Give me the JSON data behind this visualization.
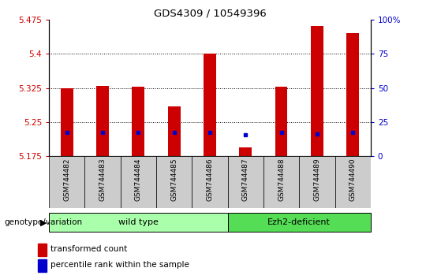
{
  "title": "GDS4309 / 10549396",
  "samples": [
    "GSM744482",
    "GSM744483",
    "GSM744484",
    "GSM744485",
    "GSM744486",
    "GSM744487",
    "GSM744488",
    "GSM744489",
    "GSM744490"
  ],
  "transformed_counts": [
    5.325,
    5.33,
    5.328,
    5.285,
    5.4,
    5.195,
    5.328,
    5.46,
    5.445
  ],
  "percentile_values": [
    5.228,
    5.227,
    5.227,
    5.227,
    5.227,
    5.222,
    5.227,
    5.224,
    5.227
  ],
  "ymin": 5.175,
  "ymax": 5.475,
  "yticks": [
    5.175,
    5.25,
    5.325,
    5.4,
    5.475
  ],
  "right_yticks": [
    0,
    25,
    50,
    75,
    100
  ],
  "bar_bottom": 5.175,
  "bar_color": "#cc0000",
  "blue_color": "#0000cc",
  "group1_label": "wild type",
  "group2_label": "Ezh2-deficient",
  "group1_count": 5,
  "group2_count": 4,
  "genotype_label": "genotype/variation",
  "legend_red": "transformed count",
  "legend_blue": "percentile rank within the sample",
  "group1_bg": "#aaffaa",
  "group2_bg": "#55dd55",
  "ylabel_color_left": "#cc0000",
  "ylabel_color_right": "#0000cc",
  "tick_bg": "#cccccc",
  "bar_width": 0.35
}
